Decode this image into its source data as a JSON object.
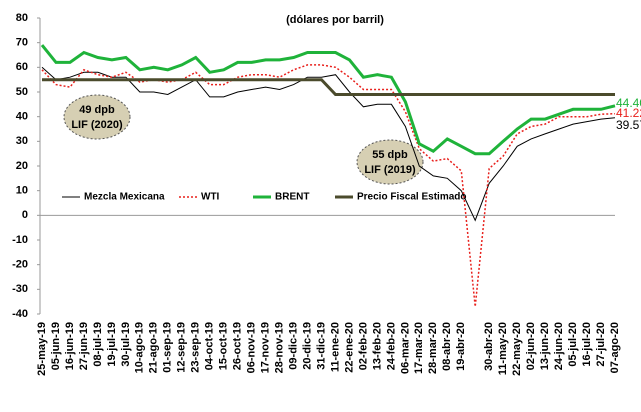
{
  "chart_data": {
    "type": "line",
    "annotations": [
      "(dólares por barril)",
      "55 dpb\nLIF (2019)",
      "49 dpb\nLIF (2020)"
    ],
    "categories": [
      "25-may-19",
      "05-jun-19",
      "16-jun-19",
      "27-jun-19",
      "08-jul-19",
      "19-jul-19",
      "30-jul-19",
      "10-ago-19",
      "21-ago-19",
      "01-sep-19",
      "12-sep-19",
      "23-sep-19",
      "04-oct-19",
      "15-oct-19",
      "26-oct-19",
      "06-nov-19",
      "17-nov-19",
      "28-nov-19",
      "09-dic-19",
      "20-dic-19",
      "31-dic-19",
      "11-ene-20",
      "22-ene-20",
      "02-feb-20",
      "13-feb-20",
      "24-feb-20",
      "06-mar-20",
      "17-mar-20",
      "28-mar-20",
      "08-abr-20",
      "19-abr-20",
      null,
      "30-abr-20",
      "11-may-20",
      "22-may-20",
      "02-jun-20",
      "13-jun-20",
      "24-jun-20",
      "05-jul-20",
      "16-jul-20",
      "27-jul-20",
      "07-ago-20"
    ],
    "series": [
      {
        "name": "Mezcla Mexicana",
        "color": "#000000",
        "line_style": "thin",
        "values": [
          60,
          55,
          56,
          58,
          58,
          56,
          56,
          50,
          50,
          49,
          52,
          55,
          48,
          48,
          50,
          51,
          52,
          51,
          53,
          56,
          56,
          57,
          50,
          44,
          45,
          45,
          36,
          20,
          16,
          15,
          10,
          -2,
          13,
          20,
          28,
          31,
          33,
          35,
          37,
          38,
          39,
          39.57
        ],
        "value_labels": [
          null,
          null,
          null,
          null,
          null,
          null,
          null,
          null,
          null,
          null,
          null,
          null,
          null,
          null,
          null,
          null,
          null,
          null,
          null,
          null,
          null,
          null,
          null,
          null,
          null,
          null,
          null,
          null,
          null,
          null,
          null,
          null,
          null,
          null,
          null,
          null,
          null,
          null,
          null,
          null,
          null,
          "39.57"
        ]
      },
      {
        "name": "WTI",
        "color": "#e8201c",
        "line_style": "dotted",
        "values": [
          59,
          53,
          52,
          59,
          57,
          56,
          58,
          54,
          55,
          54,
          55,
          58,
          53,
          53,
          56,
          57,
          57,
          56,
          59,
          61,
          61,
          60,
          56,
          51,
          51,
          51,
          42,
          27,
          22,
          23,
          18,
          -37,
          19,
          24,
          33,
          36,
          37,
          40,
          40,
          40,
          41,
          41.22
        ],
        "value_labels": [
          null,
          null,
          null,
          null,
          null,
          null,
          null,
          null,
          null,
          null,
          null,
          null,
          null,
          null,
          null,
          null,
          null,
          null,
          null,
          null,
          null,
          null,
          null,
          null,
          null,
          null,
          null,
          null,
          null,
          null,
          null,
          null,
          null,
          null,
          null,
          null,
          null,
          null,
          null,
          null,
          null,
          "41.22"
        ]
      },
      {
        "name": "BRENT",
        "color": "#1fb33a",
        "line_style": "bold",
        "values": [
          69,
          62,
          62,
          66,
          64,
          63,
          64,
          59,
          60,
          59,
          61,
          64,
          58,
          59,
          62,
          62,
          63,
          63,
          64,
          66,
          66,
          66,
          63,
          56,
          57,
          56,
          46,
          29,
          26,
          31,
          28,
          25,
          25,
          30,
          35,
          39,
          39,
          41,
          43,
          43,
          43,
          44.4
        ],
        "value_labels": [
          null,
          null,
          null,
          null,
          null,
          null,
          null,
          null,
          null,
          null,
          null,
          null,
          null,
          null,
          null,
          null,
          null,
          null,
          null,
          null,
          null,
          null,
          null,
          null,
          null,
          null,
          null,
          null,
          null,
          null,
          null,
          null,
          null,
          null,
          null,
          null,
          null,
          null,
          null,
          null,
          null,
          "44.40"
        ]
      },
      {
        "name": "Precio Fiscal Estimado",
        "color": "#4b4b2c",
        "line_style": "bold",
        "values": [
          55,
          55,
          55,
          55,
          55,
          55,
          55,
          55,
          55,
          55,
          55,
          55,
          55,
          55,
          55,
          55,
          55,
          55,
          55,
          55,
          55,
          49,
          49,
          49,
          49,
          49,
          49,
          49,
          49,
          49,
          49,
          49,
          49,
          49,
          49,
          49,
          49,
          49,
          49,
          49,
          49,
          49
        ]
      }
    ],
    "ylim": [
      -40,
      80
    ],
    "yticks": [
      -40,
      -30,
      -20,
      -10,
      0,
      10,
      20,
      30,
      40,
      50,
      60,
      70,
      80
    ]
  }
}
